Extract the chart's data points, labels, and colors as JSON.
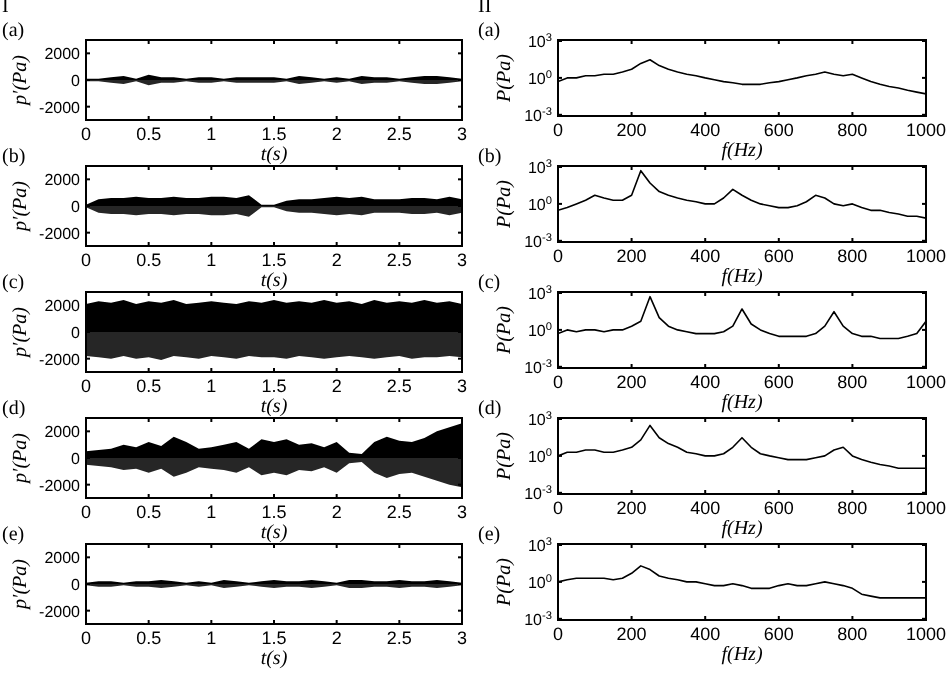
{
  "chart_data": [
    {
      "type": "area",
      "title": "(a)",
      "annotations": [
        "I"
      ],
      "xlabel": "t(s)",
      "ylabel": "p′(Pa)",
      "xlim": [
        0,
        3
      ],
      "xticks": [
        0,
        0.5,
        1,
        1.5,
        2,
        2.5,
        3
      ],
      "ylim": [
        -3000,
        3000
      ],
      "yticks": [
        -2000,
        0,
        2000
      ],
      "x": [
        0,
        0.1,
        0.2,
        0.3,
        0.4,
        0.5,
        0.6,
        0.7,
        0.8,
        0.9,
        1,
        1.1,
        1.2,
        1.3,
        1.4,
        1.5,
        1.6,
        1.7,
        1.8,
        1.9,
        2,
        2.1,
        2.2,
        2.3,
        2.4,
        2.5,
        2.6,
        2.7,
        2.8,
        2.9,
        3
      ],
      "series": [
        {
          "color": "#000000",
          "values": [
            100,
            100,
            200,
            300,
            100,
            400,
            200,
            200,
            100,
            200,
            200,
            100,
            200,
            200,
            200,
            200,
            100,
            300,
            200,
            100,
            200,
            100,
            300,
            200,
            200,
            100,
            200,
            300,
            300,
            200,
            100
          ]
        },
        {
          "color": "#262626",
          "values": [
            -100,
            -100,
            -200,
            -300,
            -100,
            -400,
            -200,
            -200,
            -100,
            -200,
            -200,
            -100,
            -200,
            -200,
            -200,
            -200,
            -100,
            -300,
            -200,
            -100,
            -200,
            -100,
            -300,
            -200,
            -200,
            -100,
            -200,
            -300,
            -300,
            -200,
            -100
          ]
        }
      ]
    },
    {
      "type": "area",
      "title": "(b)",
      "xlabel": "t(s)",
      "ylabel": "p′(Pa)",
      "xlim": [
        0,
        3
      ],
      "xticks": [
        0,
        0.5,
        1,
        1.5,
        2,
        2.5,
        3
      ],
      "ylim": [
        -3000,
        3000
      ],
      "yticks": [
        -2000,
        0,
        2000
      ],
      "x": [
        0,
        0.1,
        0.2,
        0.3,
        0.4,
        0.5,
        0.6,
        0.7,
        0.8,
        0.9,
        1,
        1.1,
        1.2,
        1.3,
        1.4,
        1.5,
        1.6,
        1.7,
        1.8,
        1.9,
        2,
        2.1,
        2.2,
        2.3,
        2.4,
        2.5,
        2.6,
        2.7,
        2.8,
        2.9,
        3
      ],
      "series": [
        {
          "color": "#000000",
          "values": [
            100,
            500,
            600,
            600,
            700,
            600,
            600,
            700,
            600,
            600,
            700,
            700,
            600,
            800,
            100,
            100,
            400,
            500,
            500,
            600,
            700,
            600,
            700,
            500,
            500,
            500,
            600,
            600,
            500,
            700,
            500
          ]
        },
        {
          "color": "#262626",
          "values": [
            -100,
            -500,
            -600,
            -600,
            -700,
            -600,
            -600,
            -700,
            -600,
            -600,
            -700,
            -700,
            -600,
            -800,
            -100,
            -100,
            -400,
            -500,
            -500,
            -600,
            -700,
            -600,
            -700,
            -500,
            -500,
            -500,
            -600,
            -600,
            -500,
            -700,
            -500
          ]
        }
      ]
    },
    {
      "type": "area",
      "title": "(c)",
      "xlabel": "t(s)",
      "ylabel": "p′(Pa)",
      "xlim": [
        0,
        3
      ],
      "xticks": [
        0,
        0.5,
        1,
        1.5,
        2,
        2.5,
        3
      ],
      "ylim": [
        -3000,
        3000
      ],
      "yticks": [
        -2000,
        0,
        2000
      ],
      "x": [
        0,
        0.1,
        0.2,
        0.3,
        0.4,
        0.5,
        0.6,
        0.7,
        0.8,
        0.9,
        1,
        1.1,
        1.2,
        1.3,
        1.4,
        1.5,
        1.6,
        1.7,
        1.8,
        1.9,
        2,
        2.1,
        2.2,
        2.3,
        2.4,
        2.5,
        2.6,
        2.7,
        2.8,
        2.9,
        3
      ],
      "series": [
        {
          "color": "#000000",
          "values": [
            2100,
            2300,
            2200,
            2400,
            2100,
            2300,
            2200,
            2400,
            2100,
            2200,
            2300,
            2200,
            2100,
            2300,
            2200,
            2400,
            2200,
            2300,
            2200,
            2400,
            2200,
            2300,
            2100,
            2400,
            2200,
            2300,
            2200,
            2400,
            2200,
            2300,
            2100
          ]
        },
        {
          "color": "#262626",
          "values": [
            -1800,
            -1900,
            -2000,
            -1800,
            -2000,
            -1900,
            -2100,
            -1800,
            -1900,
            -2000,
            -1800,
            -1900,
            -2000,
            -1800,
            -1900,
            -1900,
            -2000,
            -1800,
            -1900,
            -2000,
            -1900,
            -1800,
            -1900,
            -2000,
            -1900,
            -1800,
            -2000,
            -1900,
            -1900,
            -1800,
            -1900
          ]
        }
      ]
    },
    {
      "type": "area",
      "title": "(d)",
      "xlabel": "t(s)",
      "ylabel": "p′(Pa)",
      "xlim": [
        0,
        3
      ],
      "xticks": [
        0,
        0.5,
        1,
        1.5,
        2,
        2.5,
        3
      ],
      "ylim": [
        -3000,
        3000
      ],
      "yticks": [
        -2000,
        0,
        2000
      ],
      "x": [
        0,
        0.1,
        0.2,
        0.3,
        0.4,
        0.5,
        0.6,
        0.7,
        0.8,
        0.9,
        1,
        1.1,
        1.2,
        1.3,
        1.4,
        1.5,
        1.6,
        1.7,
        1.8,
        1.9,
        2,
        2.1,
        2.2,
        2.3,
        2.4,
        2.5,
        2.6,
        2.7,
        2.8,
        2.9,
        3
      ],
      "series": [
        {
          "color": "#000000",
          "values": [
            500,
            600,
            700,
            1000,
            800,
            1200,
            900,
            1600,
            1200,
            700,
            800,
            1000,
            1200,
            700,
            1400,
            1200,
            1400,
            1000,
            1100,
            800,
            1200,
            400,
            300,
            1200,
            1600,
            1300,
            1200,
            1500,
            2000,
            2300,
            2600
          ]
        },
        {
          "color": "#262626",
          "values": [
            -500,
            -600,
            -700,
            -900,
            -800,
            -1100,
            -800,
            -1400,
            -1100,
            -700,
            -800,
            -900,
            -1100,
            -700,
            -1300,
            -1100,
            -1300,
            -900,
            -1000,
            -700,
            -1100,
            -400,
            -300,
            -1100,
            -1500,
            -1200,
            -1100,
            -1400,
            -1700,
            -2000,
            -2200
          ]
        }
      ]
    },
    {
      "type": "area",
      "title": "(e)",
      "xlabel": "t(s)",
      "ylabel": "p′(Pa)",
      "xlim": [
        0,
        3
      ],
      "xticks": [
        0,
        0.5,
        1,
        1.5,
        2,
        2.5,
        3
      ],
      "ylim": [
        -3000,
        3000
      ],
      "yticks": [
        -2000,
        0,
        2000
      ],
      "x": [
        0,
        0.1,
        0.2,
        0.3,
        0.4,
        0.5,
        0.6,
        0.7,
        0.8,
        0.9,
        1,
        1.1,
        1.2,
        1.3,
        1.4,
        1.5,
        1.6,
        1.7,
        1.8,
        1.9,
        2,
        2.1,
        2.2,
        2.3,
        2.4,
        2.5,
        2.6,
        2.7,
        2.8,
        2.9,
        3
      ],
      "series": [
        {
          "color": "#000000",
          "values": [
            100,
            200,
            200,
            100,
            200,
            200,
            300,
            200,
            100,
            200,
            100,
            300,
            200,
            100,
            200,
            300,
            200,
            200,
            300,
            200,
            100,
            300,
            300,
            200,
            200,
            300,
            200,
            200,
            300,
            200,
            100
          ]
        },
        {
          "color": "#262626",
          "values": [
            -100,
            -200,
            -200,
            -100,
            -200,
            -200,
            -300,
            -200,
            -100,
            -200,
            -100,
            -300,
            -200,
            -100,
            -200,
            -300,
            -200,
            -200,
            -300,
            -200,
            -100,
            -300,
            -300,
            -200,
            -200,
            -300,
            -200,
            -200,
            -300,
            -200,
            -100
          ]
        }
      ]
    },
    {
      "type": "line",
      "title": "(a)",
      "annotations": [
        "II"
      ],
      "xlabel": "f(Hz)",
      "ylabel": "P(Pa)",
      "log": true,
      "xlim": [
        0,
        1000
      ],
      "xticks": [
        0,
        200,
        400,
        600,
        800,
        1000
      ],
      "ylim": [
        0.0008,
        1200
      ],
      "yticks": [
        {
          "value": 0.001,
          "label": "10$^{-3}$"
        },
        {
          "value": 1,
          "label": "10$^{0}$"
        },
        {
          "value": 1000,
          "label": "10$^{3}$"
        }
      ],
      "x": [
        0,
        25,
        50,
        75,
        100,
        125,
        150,
        175,
        200,
        225,
        250,
        275,
        300,
        325,
        350,
        375,
        400,
        425,
        450,
        475,
        500,
        525,
        550,
        575,
        600,
        625,
        650,
        675,
        700,
        725,
        750,
        775,
        800,
        825,
        850,
        875,
        900,
        925,
        950,
        975,
        1000
      ],
      "series": [
        {
          "color": "#000000",
          "values": [
            0.5,
            1,
            1,
            1.5,
            1.5,
            2,
            2,
            3,
            5,
            15,
            30,
            10,
            5,
            3,
            2,
            1.5,
            1,
            0.7,
            0.5,
            0.4,
            0.3,
            0.3,
            0.3,
            0.4,
            0.5,
            0.7,
            1,
            1.5,
            2,
            3,
            2,
            1.5,
            2,
            1,
            0.5,
            0.3,
            0.2,
            0.15,
            0.1,
            0.07,
            0.05
          ]
        }
      ]
    },
    {
      "type": "line",
      "title": "(b)",
      "xlabel": "f(Hz)",
      "ylabel": "P(Pa)",
      "log": true,
      "xlim": [
        0,
        1000
      ],
      "xticks": [
        0,
        200,
        400,
        600,
        800,
        1000
      ],
      "ylim": [
        0.0008,
        1200
      ],
      "yticks": [
        {
          "value": 0.001,
          "label": "10$^{-3}$"
        },
        {
          "value": 1,
          "label": "10$^{0}$"
        },
        {
          "value": 1000,
          "label": "10$^{3}$"
        }
      ],
      "x": [
        0,
        25,
        50,
        75,
        100,
        125,
        150,
        175,
        200,
        225,
        250,
        275,
        300,
        325,
        350,
        375,
        400,
        425,
        450,
        475,
        500,
        525,
        550,
        575,
        600,
        625,
        650,
        675,
        700,
        725,
        750,
        775,
        800,
        825,
        850,
        875,
        900,
        925,
        950,
        975,
        1000
      ],
      "series": [
        {
          "color": "#000000",
          "values": [
            0.3,
            0.5,
            1,
            2,
            5,
            3,
            2,
            2,
            5,
            500,
            50,
            10,
            5,
            3,
            2,
            1.5,
            1,
            1,
            3,
            15,
            5,
            2,
            1,
            0.7,
            0.5,
            0.5,
            0.7,
            1.5,
            5,
            3,
            1,
            0.7,
            1,
            0.5,
            0.3,
            0.3,
            0.2,
            0.15,
            0.1,
            0.1,
            0.07
          ]
        }
      ]
    },
    {
      "type": "line",
      "title": "(c)",
      "xlabel": "f(Hz)",
      "ylabel": "P(Pa)",
      "log": true,
      "xlim": [
        0,
        1000
      ],
      "xticks": [
        0,
        200,
        400,
        600,
        800,
        1000
      ],
      "ylim": [
        0.0008,
        1200
      ],
      "yticks": [
        {
          "value": 0.001,
          "label": "10$^{-3}$"
        },
        {
          "value": 1,
          "label": "10$^{0}$"
        },
        {
          "value": 1000,
          "label": "10$^{3}$"
        }
      ],
      "x": [
        0,
        25,
        50,
        75,
        100,
        125,
        150,
        175,
        200,
        225,
        250,
        275,
        300,
        325,
        350,
        375,
        400,
        425,
        450,
        475,
        500,
        525,
        550,
        575,
        600,
        625,
        650,
        675,
        700,
        725,
        750,
        775,
        800,
        825,
        850,
        875,
        900,
        925,
        950,
        975,
        1000
      ],
      "series": [
        {
          "color": "#000000",
          "values": [
            0.5,
            1,
            0.7,
            1,
            1,
            0.7,
            1,
            1,
            2,
            5,
            500,
            10,
            2,
            1,
            0.7,
            0.5,
            0.5,
            0.5,
            0.7,
            2,
            50,
            3,
            1,
            0.5,
            0.3,
            0.3,
            0.3,
            0.3,
            0.5,
            2,
            30,
            2,
            0.5,
            0.3,
            0.3,
            0.2,
            0.2,
            0.2,
            0.3,
            0.5,
            5
          ]
        }
      ]
    },
    {
      "type": "line",
      "title": "(d)",
      "xlabel": "f(Hz)",
      "ylabel": "P(Pa)",
      "log": true,
      "xlim": [
        0,
        1000
      ],
      "xticks": [
        0,
        200,
        400,
        600,
        800,
        1000
      ],
      "ylim": [
        0.0008,
        1200
      ],
      "yticks": [
        {
          "value": 0.001,
          "label": "10$^{-3}$"
        },
        {
          "value": 1,
          "label": "10$^{0}$"
        },
        {
          "value": 1000,
          "label": "10$^{3}$"
        }
      ],
      "x": [
        0,
        25,
        50,
        75,
        100,
        125,
        150,
        175,
        200,
        225,
        250,
        275,
        300,
        325,
        350,
        375,
        400,
        425,
        450,
        475,
        500,
        525,
        550,
        575,
        600,
        625,
        650,
        675,
        700,
        725,
        750,
        775,
        800,
        825,
        850,
        875,
        900,
        925,
        950,
        975,
        1000
      ],
      "series": [
        {
          "color": "#000000",
          "values": [
            1,
            2,
            2,
            3,
            3,
            2,
            2,
            3,
            5,
            20,
            300,
            30,
            10,
            5,
            2,
            1.5,
            1,
            1,
            1.5,
            5,
            30,
            5,
            1.5,
            1,
            0.7,
            0.5,
            0.5,
            0.5,
            0.7,
            1,
            3,
            5,
            1,
            0.5,
            0.3,
            0.2,
            0.15,
            0.1,
            0.1,
            0.1,
            0.1
          ]
        }
      ]
    },
    {
      "type": "line",
      "title": "(e)",
      "xlabel": "f(Hz)",
      "ylabel": "P(Pa)",
      "log": true,
      "xlim": [
        0,
        1000
      ],
      "xticks": [
        0,
        200,
        400,
        600,
        800,
        1000
      ],
      "ylim": [
        0.0008,
        1200
      ],
      "yticks": [
        {
          "value": 0.001,
          "label": "10$^{-3}$"
        },
        {
          "value": 1,
          "label": "10$^{0}$"
        },
        {
          "value": 1000,
          "label": "10$^{3}$"
        }
      ],
      "x": [
        0,
        25,
        50,
        75,
        100,
        125,
        150,
        175,
        200,
        225,
        250,
        275,
        300,
        325,
        350,
        375,
        400,
        425,
        450,
        475,
        500,
        525,
        550,
        575,
        600,
        625,
        650,
        675,
        700,
        725,
        750,
        775,
        800,
        825,
        850,
        875,
        900,
        925,
        950,
        975,
        1000
      ],
      "series": [
        {
          "color": "#000000",
          "values": [
            1,
            1.5,
            2,
            2,
            2,
            2,
            1.5,
            2,
            5,
            20,
            10,
            3,
            2,
            1.5,
            1,
            1,
            0.7,
            0.5,
            0.5,
            0.7,
            0.5,
            0.3,
            0.3,
            0.3,
            0.5,
            0.7,
            0.5,
            0.5,
            0.7,
            1,
            0.7,
            0.5,
            0.3,
            0.1,
            0.07,
            0.05,
            0.05,
            0.05,
            0.05,
            0.05,
            0.05
          ]
        }
      ]
    }
  ]
}
